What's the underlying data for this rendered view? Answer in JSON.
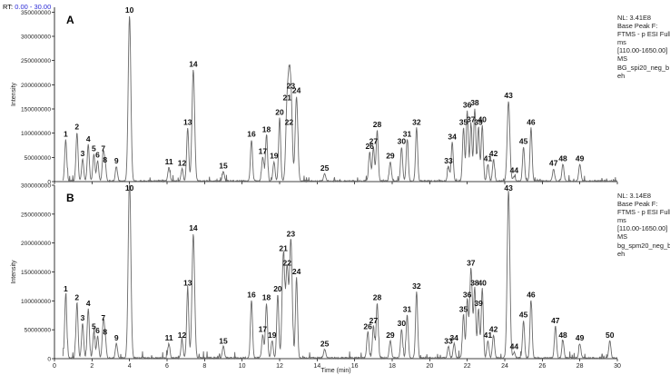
{
  "header": {
    "rt_label": "RT:",
    "rt_range": "0.00 - 30.00"
  },
  "colors": {
    "trace": "#6a6a6a",
    "axis": "#000000",
    "rt_range": "#2b2bd6"
  },
  "chart_data": [
    {
      "type": "line",
      "panel_letter": "A",
      "xlabel": "",
      "ylabel": "Intensity",
      "xlim": [
        0,
        30
      ],
      "ylim": [
        0,
        360000000
      ],
      "yticks": [
        0,
        50000000,
        100000000,
        150000000,
        200000000,
        250000000,
        300000000,
        350000000
      ],
      "ytick_labels": [
        "0",
        "50000000",
        "100000000",
        "150000000",
        "200000000",
        "250000000",
        "300000000",
        "350000000"
      ],
      "info": [
        "NL: 3.41E8",
        "Base Peak F:",
        "FTMS - p ESI Full",
        "ms",
        "[110.00-1650.00]",
        "MS",
        "BG_spi20_neg_b",
        "eh"
      ],
      "peaks": [
        {
          "id": "1",
          "rt": 0.6,
          "height": 85000000
        },
        {
          "id": "2",
          "rt": 1.2,
          "height": 100000000
        },
        {
          "id": "3",
          "rt": 1.5,
          "height": 45000000
        },
        {
          "id": "4",
          "rt": 1.8,
          "height": 75000000
        },
        {
          "id": "5",
          "rt": 2.1,
          "height": 55000000
        },
        {
          "id": "6",
          "rt": 2.3,
          "height": 42000000
        },
        {
          "id": "7",
          "rt": 2.6,
          "height": 55000000
        },
        {
          "id": "8",
          "rt": 2.7,
          "height": 32000000
        },
        {
          "id": "9",
          "rt": 3.3,
          "height": 30000000
        },
        {
          "id": "10",
          "rt": 4.0,
          "height": 341000000
        },
        {
          "id": "11",
          "rt": 6.1,
          "height": 28000000
        },
        {
          "id": "12",
          "rt": 6.8,
          "height": 25000000
        },
        {
          "id": "13",
          "rt": 7.1,
          "height": 110000000
        },
        {
          "id": "14",
          "rt": 7.4,
          "height": 230000000
        },
        {
          "id": "15",
          "rt": 9.0,
          "height": 20000000
        },
        {
          "id": "16",
          "rt": 10.5,
          "height": 85000000
        },
        {
          "id": "17",
          "rt": 11.1,
          "height": 50000000
        },
        {
          "id": "18",
          "rt": 11.3,
          "height": 95000000
        },
        {
          "id": "19",
          "rt": 11.7,
          "height": 40000000
        },
        {
          "id": "20",
          "rt": 12.0,
          "height": 130000000
        },
        {
          "id": "21",
          "rt": 12.4,
          "height": 160000000
        },
        {
          "id": "22",
          "rt": 12.5,
          "height": 110000000
        },
        {
          "id": "23",
          "rt": 12.6,
          "height": 185000000
        },
        {
          "id": "24",
          "rt": 12.9,
          "height": 175000000
        },
        {
          "id": "25",
          "rt": 14.4,
          "height": 15000000
        },
        {
          "id": "26",
          "rt": 16.8,
          "height": 60000000
        },
        {
          "id": "27",
          "rt": 17.0,
          "height": 70000000
        },
        {
          "id": "28",
          "rt": 17.2,
          "height": 105000000
        },
        {
          "id": "29",
          "rt": 17.9,
          "height": 40000000
        },
        {
          "id": "30",
          "rt": 18.5,
          "height": 70000000
        },
        {
          "id": "31",
          "rt": 18.8,
          "height": 85000000
        },
        {
          "id": "32",
          "rt": 19.3,
          "height": 110000000
        },
        {
          "id": "33",
          "rt": 21.0,
          "height": 30000000
        },
        {
          "id": "34",
          "rt": 21.2,
          "height": 80000000
        },
        {
          "id": "35",
          "rt": 21.8,
          "height": 110000000
        },
        {
          "id": "36",
          "rt": 22.0,
          "height": 145000000
        },
        {
          "id": "37",
          "rt": 22.2,
          "height": 115000000
        },
        {
          "id": "38",
          "rt": 22.4,
          "height": 150000000
        },
        {
          "id": "39",
          "rt": 22.6,
          "height": 110000000
        },
        {
          "id": "40",
          "rt": 22.8,
          "height": 115000000
        },
        {
          "id": "41",
          "rt": 23.1,
          "height": 35000000
        },
        {
          "id": "42",
          "rt": 23.4,
          "height": 45000000
        },
        {
          "id": "43",
          "rt": 24.2,
          "height": 165000000
        },
        {
          "id": "44",
          "rt": 24.5,
          "height": 10000000
        },
        {
          "id": "45",
          "rt": 25.0,
          "height": 70000000
        },
        {
          "id": "46",
          "rt": 25.4,
          "height": 110000000
        },
        {
          "id": "47",
          "rt": 26.6,
          "height": 25000000
        },
        {
          "id": "48",
          "rt": 27.1,
          "height": 35000000
        },
        {
          "id": "49",
          "rt": 28.0,
          "height": 35000000
        }
      ]
    },
    {
      "type": "line",
      "panel_letter": "B",
      "xlabel": "Time (min)",
      "ylabel": "Intensity",
      "xlim": [
        0,
        30
      ],
      "ylim": [
        0,
        300000000
      ],
      "xticks": [
        0,
        2,
        4,
        6,
        8,
        10,
        12,
        14,
        16,
        18,
        20,
        22,
        24,
        26,
        28,
        30
      ],
      "yticks": [
        0,
        50000000,
        100000000,
        150000000,
        200000000,
        250000000,
        300000000
      ],
      "ytick_labels": [
        "0",
        "50000000",
        "100000000",
        "150000000",
        "200000000",
        "250000000",
        "300000000"
      ],
      "info": [
        "NL: 3.14E8",
        "Base Peak F:",
        "FTMS - p ESI Full",
        "ms",
        "[110.00-1650.00]",
        "MS",
        "bg_spm20_neg_b",
        "eh"
      ],
      "peaks": [
        {
          "id": "1",
          "rt": 0.6,
          "height": 110000000
        },
        {
          "id": "2",
          "rt": 1.2,
          "height": 95000000
        },
        {
          "id": "3",
          "rt": 1.5,
          "height": 60000000
        },
        {
          "id": "4",
          "rt": 1.8,
          "height": 85000000
        },
        {
          "id": "5",
          "rt": 2.1,
          "height": 45000000
        },
        {
          "id": "6",
          "rt": 2.3,
          "height": 38000000
        },
        {
          "id": "7",
          "rt": 2.6,
          "height": 60000000
        },
        {
          "id": "8",
          "rt": 2.7,
          "height": 35000000
        },
        {
          "id": "9",
          "rt": 3.3,
          "height": 25000000
        },
        {
          "id": "10",
          "rt": 4.0,
          "height": 314000000
        },
        {
          "id": "11",
          "rt": 6.1,
          "height": 25000000
        },
        {
          "id": "12",
          "rt": 6.8,
          "height": 30000000
        },
        {
          "id": "13",
          "rt": 7.1,
          "height": 120000000
        },
        {
          "id": "14",
          "rt": 7.4,
          "height": 215000000
        },
        {
          "id": "15",
          "rt": 9.0,
          "height": 20000000
        },
        {
          "id": "16",
          "rt": 10.5,
          "height": 100000000
        },
        {
          "id": "17",
          "rt": 11.1,
          "height": 40000000
        },
        {
          "id": "18",
          "rt": 11.3,
          "height": 95000000
        },
        {
          "id": "19",
          "rt": 11.6,
          "height": 30000000
        },
        {
          "id": "20",
          "rt": 11.9,
          "height": 110000000
        },
        {
          "id": "21",
          "rt": 12.2,
          "height": 180000000
        },
        {
          "id": "22",
          "rt": 12.4,
          "height": 155000000
        },
        {
          "id": "23",
          "rt": 12.6,
          "height": 205000000
        },
        {
          "id": "24",
          "rt": 12.9,
          "height": 140000000
        },
        {
          "id": "25",
          "rt": 14.4,
          "height": 15000000
        },
        {
          "id": "26",
          "rt": 16.7,
          "height": 45000000
        },
        {
          "id": "27",
          "rt": 17.0,
          "height": 55000000
        },
        {
          "id": "28",
          "rt": 17.2,
          "height": 95000000
        },
        {
          "id": "29",
          "rt": 17.9,
          "height": 30000000
        },
        {
          "id": "30",
          "rt": 18.5,
          "height": 50000000
        },
        {
          "id": "31",
          "rt": 18.8,
          "height": 75000000
        },
        {
          "id": "32",
          "rt": 19.3,
          "height": 115000000
        },
        {
          "id": "33",
          "rt": 21.0,
          "height": 20000000
        },
        {
          "id": "34",
          "rt": 21.3,
          "height": 25000000
        },
        {
          "id": "35",
          "rt": 21.8,
          "height": 75000000
        },
        {
          "id": "36",
          "rt": 22.0,
          "height": 100000000
        },
        {
          "id": "37",
          "rt": 22.2,
          "height": 155000000
        },
        {
          "id": "38",
          "rt": 22.4,
          "height": 120000000
        },
        {
          "id": "39",
          "rt": 22.6,
          "height": 85000000
        },
        {
          "id": "40",
          "rt": 22.8,
          "height": 120000000
        },
        {
          "id": "41",
          "rt": 23.1,
          "height": 30000000
        },
        {
          "id": "42",
          "rt": 23.4,
          "height": 40000000
        },
        {
          "id": "43",
          "rt": 24.2,
          "height": 290000000
        },
        {
          "id": "44",
          "rt": 24.5,
          "height": 10000000
        },
        {
          "id": "45",
          "rt": 25.0,
          "height": 65000000
        },
        {
          "id": "46",
          "rt": 25.4,
          "height": 100000000
        },
        {
          "id": "47",
          "rt": 26.7,
          "height": 55000000
        },
        {
          "id": "48",
          "rt": 27.1,
          "height": 30000000
        },
        {
          "id": "49",
          "rt": 28.0,
          "height": 25000000
        },
        {
          "id": "50",
          "rt": 29.6,
          "height": 30000000
        }
      ]
    }
  ]
}
